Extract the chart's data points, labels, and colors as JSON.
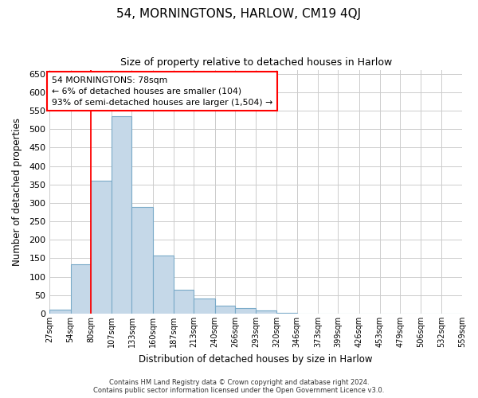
{
  "title": "54, MORNINGTONS, HARLOW, CM19 4QJ",
  "subtitle": "Size of property relative to detached houses in Harlow",
  "xlabel": "Distribution of detached houses by size in Harlow",
  "ylabel": "Number of detached properties",
  "bar_color": "#c5d8e8",
  "bar_edge_color": "#7aaac8",
  "bins": [
    27,
    54,
    80,
    107,
    133,
    160,
    187,
    213,
    240,
    266,
    293,
    320,
    346,
    373,
    399,
    426,
    453,
    479,
    506,
    532,
    559
  ],
  "bin_labels": [
    "27sqm",
    "54sqm",
    "80sqm",
    "107sqm",
    "133sqm",
    "160sqm",
    "187sqm",
    "213sqm",
    "240sqm",
    "266sqm",
    "293sqm",
    "320sqm",
    "346sqm",
    "373sqm",
    "399sqm",
    "426sqm",
    "453sqm",
    "479sqm",
    "506sqm",
    "532sqm",
    "559sqm"
  ],
  "values": [
    10,
    133,
    360,
    535,
    290,
    158,
    65,
    40,
    22,
    15,
    8,
    2,
    0,
    0,
    0,
    0,
    1,
    0,
    0,
    1
  ],
  "ylim": [
    0,
    660
  ],
  "yticks": [
    0,
    50,
    100,
    150,
    200,
    250,
    300,
    350,
    400,
    450,
    500,
    550,
    600,
    650
  ],
  "red_line_x": 80,
  "annotation_title": "54 MORNINGTONS: 78sqm",
  "annotation_line1": "← 6% of detached houses are smaller (104)",
  "annotation_line2": "93% of semi-detached houses are larger (1,504) →",
  "footer1": "Contains HM Land Registry data © Crown copyright and database right 2024.",
  "footer2": "Contains public sector information licensed under the Open Government Licence v3.0.",
  "background_color": "#ffffff",
  "grid_color": "#cccccc"
}
